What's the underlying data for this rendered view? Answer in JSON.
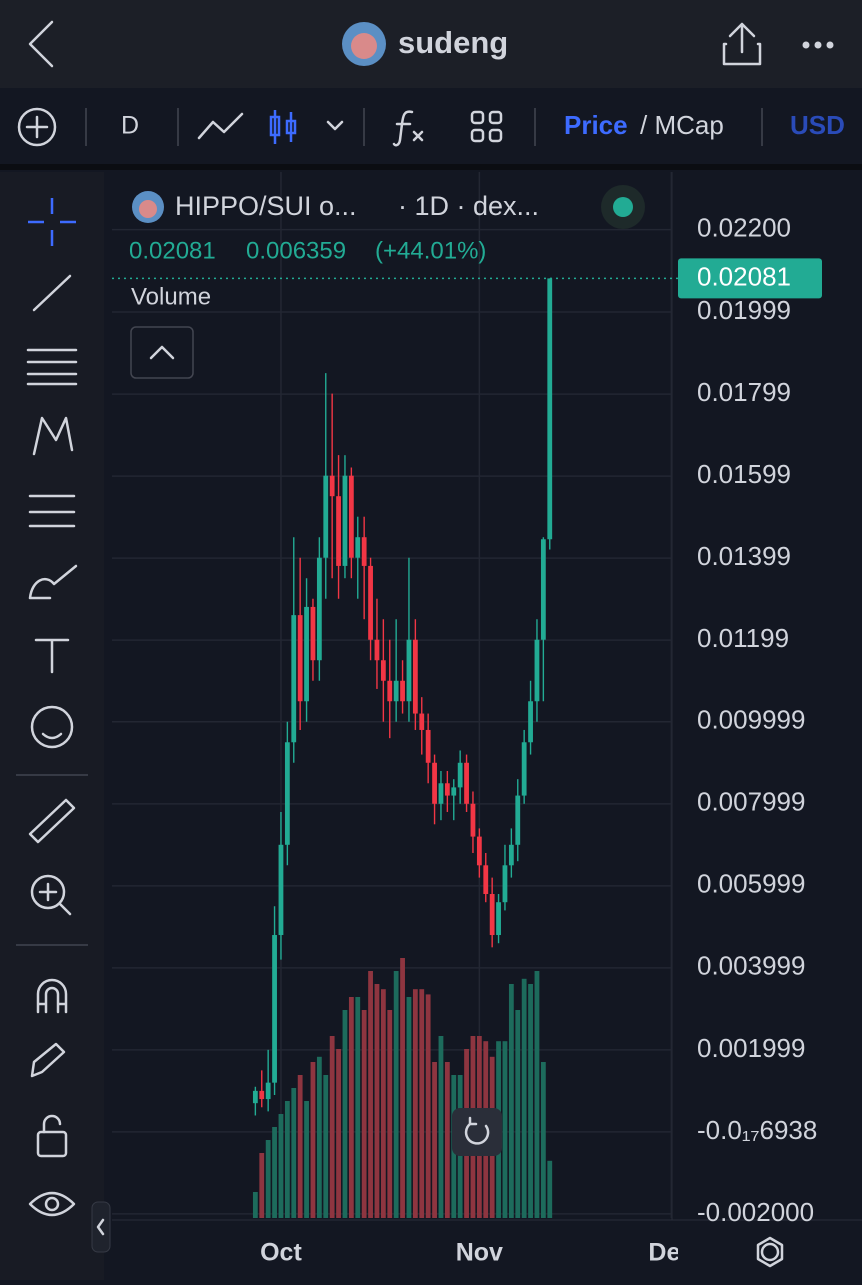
{
  "header": {
    "title": "sudeng"
  },
  "toolbar": {
    "interval": "D",
    "price": "Price",
    "mcap": "/ MCap",
    "currency": "USD"
  },
  "chart_data": {
    "type": "candlestick",
    "symbol": "HIPPO/SUI o...",
    "source": "· 1D · dex...",
    "change": 0.006359,
    "change_label": "(+44.01%)",
    "volume_label": "Volume",
    "x": [
      0,
      1,
      2,
      3,
      4,
      5,
      6,
      7,
      8,
      9,
      10,
      11,
      12,
      13,
      14,
      15,
      16,
      17,
      18,
      19,
      20,
      21,
      22,
      23,
      24,
      25,
      26,
      27,
      28,
      29,
      30,
      31,
      32,
      33,
      34,
      35,
      36,
      37,
      38,
      39,
      40,
      41,
      42,
      43,
      44,
      45,
      46
    ],
    "open": [
      0.0007,
      0.001,
      0.0008,
      0.0012,
      0.0048,
      0.007,
      0.0095,
      0.0126,
      0.0105,
      0.0128,
      0.0115,
      0.014,
      0.016,
      0.0155,
      0.0138,
      0.016,
      0.014,
      0.0145,
      0.0138,
      0.012,
      0.0115,
      0.011,
      0.0105,
      0.011,
      0.0105,
      0.012,
      0.0102,
      0.0098,
      0.009,
      0.008,
      0.0085,
      0.0082,
      0.0084,
      0.009,
      0.008,
      0.0072,
      0.0065,
      0.0058,
      0.0048,
      0.0056,
      0.0065,
      0.007,
      0.0082,
      0.0095,
      0.0105,
      0.012,
      0.01445
    ],
    "high": [
      0.0011,
      0.0015,
      0.002,
      0.0055,
      0.0078,
      0.01,
      0.0145,
      0.014,
      0.0135,
      0.013,
      0.0145,
      0.0185,
      0.018,
      0.0165,
      0.0165,
      0.0162,
      0.015,
      0.015,
      0.014,
      0.013,
      0.0125,
      0.012,
      0.0125,
      0.0115,
      0.014,
      0.0125,
      0.0106,
      0.0102,
      0.0092,
      0.0088,
      0.0088,
      0.0086,
      0.0093,
      0.0092,
      0.0083,
      0.0074,
      0.0068,
      0.0062,
      0.0058,
      0.007,
      0.0074,
      0.0086,
      0.0098,
      0.011,
      0.0125,
      0.0145,
      0.02081
    ],
    "low": [
      0.0004,
      0.0006,
      0.0005,
      0.0009,
      0.0042,
      0.0065,
      0.009,
      0.0098,
      0.01,
      0.011,
      0.011,
      0.013,
      0.0135,
      0.013,
      0.0135,
      0.0135,
      0.013,
      0.0125,
      0.0115,
      0.0108,
      0.01,
      0.0096,
      0.01,
      0.0102,
      0.01,
      0.0098,
      0.0092,
      0.0085,
      0.0075,
      0.0076,
      0.0078,
      0.0076,
      0.008,
      0.0078,
      0.0068,
      0.0062,
      0.0056,
      0.0045,
      0.0046,
      0.0054,
      0.0062,
      0.0066,
      0.008,
      0.0092,
      0.01,
      0.0105,
      0.0142
    ],
    "close": [
      0.001,
      0.0008,
      0.0012,
      0.0048,
      0.007,
      0.0095,
      0.0126,
      0.0105,
      0.0128,
      0.0115,
      0.014,
      0.016,
      0.0155,
      0.0138,
      0.016,
      0.014,
      0.0145,
      0.0138,
      0.012,
      0.0115,
      0.011,
      0.0105,
      0.011,
      0.0105,
      0.012,
      0.0102,
      0.0098,
      0.009,
      0.008,
      0.0085,
      0.0082,
      0.0084,
      0.009,
      0.008,
      0.0072,
      0.0065,
      0.0058,
      0.0048,
      0.0056,
      0.0065,
      0.007,
      0.0082,
      0.0095,
      0.0105,
      0.012,
      0.01445,
      0.02081
    ],
    "volume": [
      10,
      25,
      30,
      35,
      40,
      45,
      50,
      55,
      45,
      60,
      62,
      55,
      70,
      65,
      80,
      85,
      85,
      80,
      95,
      90,
      88,
      80,
      95,
      100,
      85,
      88,
      88,
      86,
      60,
      70,
      60,
      55,
      55,
      65,
      70,
      70,
      68,
      62,
      68,
      68,
      90,
      80,
      92,
      90,
      95,
      60,
      22
    ],
    "up_color": "#22ab94",
    "down_color": "#f23645",
    "up_volume_color": "#1d6b5c",
    "down_volume_color": "#8e3540",
    "xlim": [
      -22.4,
      65.1
    ],
    "xticks": [
      {
        "value": 4,
        "label": "Oct"
      },
      {
        "value": 35,
        "label": "Nov"
      },
      {
        "value": 65,
        "label": "Dec"
      }
    ],
    "ylim": [
      -0.0021,
      0.023405
    ],
    "yticks": [
      {
        "value": 0.022,
        "label": "0.02200"
      },
      0.01999,
      0.01799,
      0.01599,
      0.01399,
      0.01199,
      0.009999,
      0.007999,
      0.005999,
      0.003999,
      0.001999,
      {
        "value": -6.938e-19,
        "label": "-0.0₁₇6938"
      },
      {
        "value": -0.002,
        "label": "-0.002000"
      }
    ],
    "grid": true
  }
}
